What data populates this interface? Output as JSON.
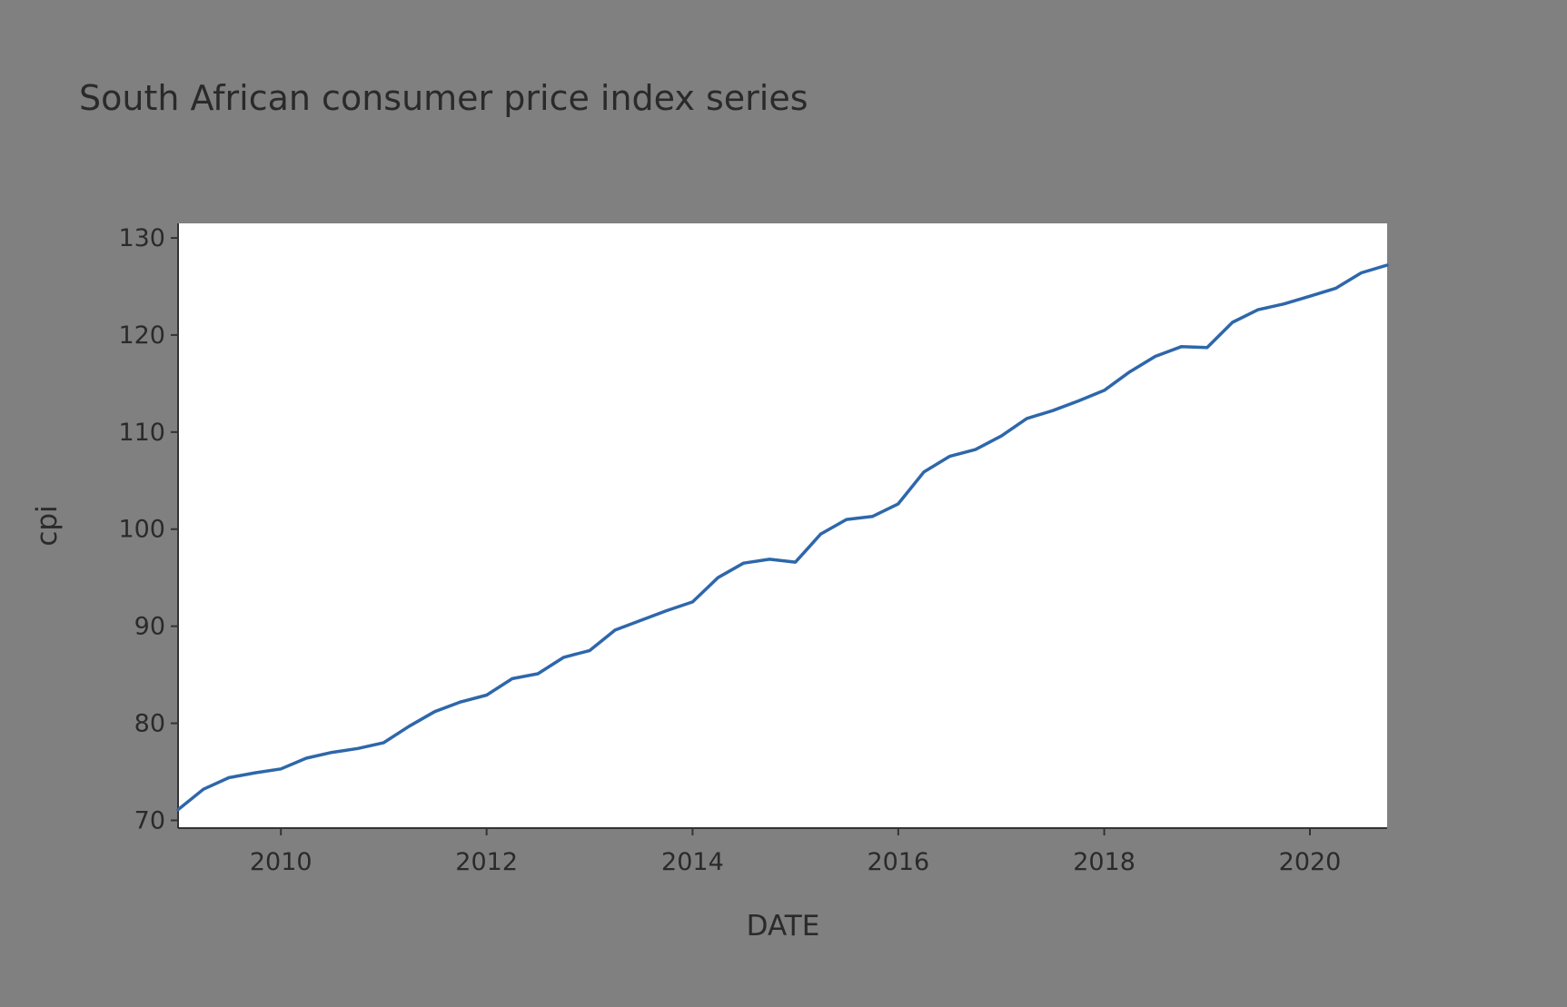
{
  "chart_data": {
    "type": "line",
    "title": "South African consumer price index series",
    "xlabel": "DATE",
    "ylabel": "cpi",
    "xlim": [
      "2009-01-01",
      "2020-10-01"
    ],
    "ylim": [
      69.2,
      131.5
    ],
    "x_ticks": [
      "2010",
      "2012",
      "2014",
      "2016",
      "2018",
      "2020"
    ],
    "y_ticks": [
      70,
      80,
      90,
      100,
      110,
      120,
      130
    ],
    "grid": false,
    "legend": "none",
    "line_color": "#2e67aa",
    "series": [
      {
        "x": [
          "2009-01-01",
          "2009-04-01",
          "2009-07-01",
          "2009-10-01",
          "2010-01-01",
          "2010-04-01",
          "2010-07-01",
          "2010-10-01",
          "2011-01-01",
          "2011-04-01",
          "2011-07-01",
          "2011-10-01",
          "2012-01-01",
          "2012-04-01",
          "2012-07-01",
          "2012-10-01",
          "2013-01-01",
          "2013-04-01",
          "2013-07-01",
          "2013-10-01",
          "2014-01-01",
          "2014-04-01",
          "2014-07-01",
          "2014-10-01",
          "2015-01-01",
          "2015-04-01",
          "2015-07-01",
          "2015-10-01",
          "2016-01-01",
          "2016-04-01",
          "2016-07-01",
          "2016-10-01",
          "2017-01-01",
          "2017-04-01",
          "2017-07-01",
          "2017-10-01",
          "2018-01-01",
          "2018-04-01",
          "2018-07-01",
          "2018-10-01",
          "2019-01-01",
          "2019-04-01",
          "2019-07-01",
          "2019-10-01",
          "2020-01-01",
          "2020-04-01",
          "2020-07-01",
          "2020-10-01"
        ],
        "values": [
          71.1,
          73.2,
          74.4,
          74.9,
          75.3,
          76.4,
          77.0,
          77.4,
          78.0,
          79.7,
          81.2,
          82.2,
          82.9,
          84.6,
          85.1,
          86.8,
          87.5,
          89.6,
          90.6,
          91.6,
          92.5,
          95.0,
          96.5,
          96.9,
          96.6,
          99.5,
          101.0,
          101.3,
          102.6,
          105.9,
          107.5,
          108.2,
          109.6,
          111.4,
          112.2,
          113.2,
          114.3,
          116.2,
          117.8,
          118.8,
          118.7,
          121.3,
          122.6,
          123.2,
          124.0,
          124.8,
          126.4,
          127.2
        ]
      }
    ]
  }
}
